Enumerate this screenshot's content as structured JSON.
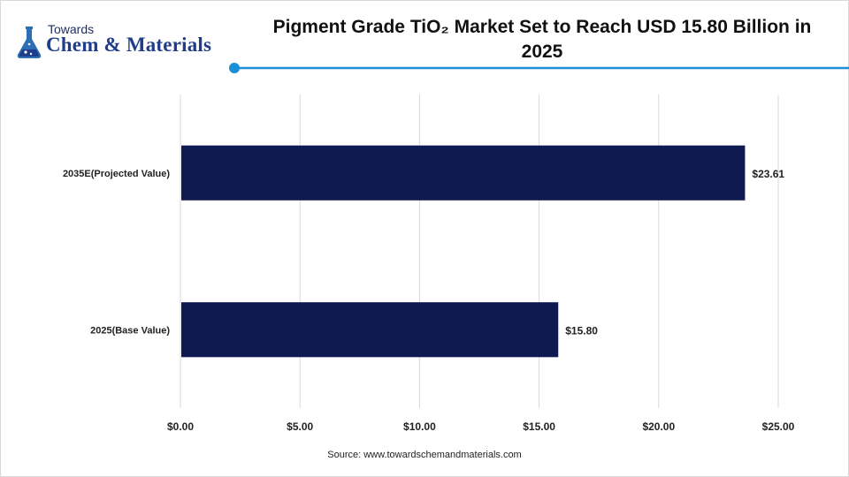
{
  "brand": {
    "top": "Towards",
    "main": "Chem & Materials",
    "flask_color": "#2c6fb5",
    "accent": "#1a8fd8"
  },
  "title": {
    "line1": "Pigment Grade TiO₂ Market Set to Reach USD 15.80 Billion in",
    "line2": "2025"
  },
  "source": "Source: www.towardschemandmaterials.com",
  "chart_data": {
    "type": "bar",
    "orientation": "horizontal",
    "categories": [
      "2035E(Projected Value)",
      "2025(Base Value)"
    ],
    "values": [
      23.61,
      15.8
    ],
    "value_labels": [
      "$23.61",
      "$15.80"
    ],
    "xlim": [
      0,
      25
    ],
    "xticks": [
      0,
      5,
      10,
      15,
      20,
      25
    ],
    "xtick_labels": [
      "$0.00",
      "$5.00",
      "$10.00",
      "$15.00",
      "$20.00",
      "$25.00"
    ],
    "grid": "vertical",
    "bar_color": "#0f1a52"
  }
}
